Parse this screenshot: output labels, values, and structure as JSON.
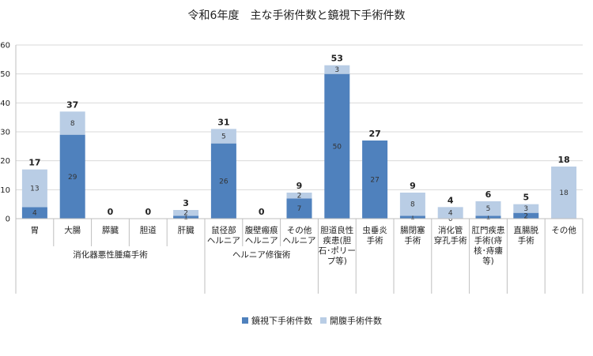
{
  "chart_data": {
    "type": "bar",
    "stacked": true,
    "title": "令和6年度　主な手術件数と鏡視下手術件数",
    "ylim": [
      0,
      60
    ],
    "yticks": [
      0,
      10,
      20,
      30,
      40,
      50,
      60
    ],
    "grid": true,
    "legend_position": "bottom",
    "categories": [
      [
        "胃"
      ],
      [
        "大腸"
      ],
      [
        "膵臓"
      ],
      [
        "胆道"
      ],
      [
        "肝臓"
      ],
      [
        "鼠径部",
        "ヘルニア"
      ],
      [
        "腹壁瘢痕",
        "ヘルニア"
      ],
      [
        "その他",
        "ヘルニア"
      ],
      [
        "胆道良性",
        "疾患(胆",
        "石･ポリー",
        "プ等)"
      ],
      [
        "虫垂炎",
        "手術"
      ],
      [
        "腸閉塞",
        "手術"
      ],
      [
        "消化管",
        "穿孔手術"
      ],
      [
        "肛門疾患",
        "手術(痔",
        "核･痔瘻",
        "等)"
      ],
      [
        "直腸脱",
        "手術"
      ],
      [
        "その他"
      ]
    ],
    "groups": [
      {
        "label": "消化器悪性腫瘍手術",
        "start": 0,
        "end": 4
      },
      {
        "label": "ヘルニア修復術",
        "start": 5,
        "end": 7
      }
    ],
    "series": [
      {
        "name": "鏡視下手術件数",
        "color": "#4f81bd",
        "values": [
          4,
          29,
          0,
          0,
          1,
          26,
          0,
          7,
          50,
          27,
          1,
          0,
          1,
          2,
          0
        ]
      },
      {
        "name": "開腹手術件数",
        "color": "#b9cde5",
        "values": [
          13,
          8,
          0,
          0,
          2,
          5,
          0,
          2,
          3,
          0,
          8,
          4,
          5,
          3,
          18
        ]
      }
    ],
    "segment_labels": [
      [
        "4",
        "29",
        "",
        "",
        "1",
        "26",
        "",
        "7",
        "50",
        "27",
        "1",
        "0",
        "1",
        "2",
        ""
      ],
      [
        "13",
        "8",
        "",
        "",
        "2",
        "5",
        "",
        "2",
        "3",
        "",
        "8",
        "4",
        "5",
        "3",
        "18"
      ]
    ],
    "totals": [
      17,
      37,
      0,
      0,
      3,
      31,
      0,
      9,
      53,
      27,
      9,
      4,
      6,
      5,
      18
    ]
  }
}
